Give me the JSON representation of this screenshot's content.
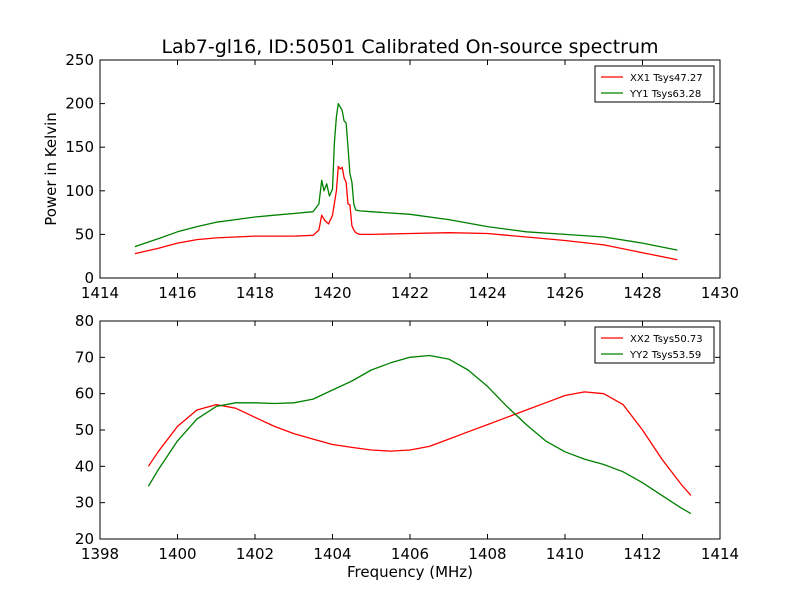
{
  "figure": {
    "title": "Lab7-gl16, ID:50501 Calibrated On-source spectrum"
  },
  "chart_data": [
    {
      "type": "line",
      "title": "Lab7-gl16, ID:50501 Calibrated On-source spectrum",
      "xlabel": "",
      "ylabel": "Power in Kelvin",
      "xlim": [
        1414,
        1430
      ],
      "ylim": [
        0,
        250
      ],
      "xticks": [
        1414,
        1416,
        1418,
        1420,
        1422,
        1424,
        1426,
        1428,
        1430
      ],
      "yticks": [
        0,
        50,
        100,
        150,
        200,
        250
      ],
      "grid": false,
      "legend_position": "top-right",
      "series": [
        {
          "name": "XX1 Tsys47.27",
          "color": "#ff0000",
          "x": [
            1414.9,
            1415.5,
            1416.0,
            1416.5,
            1417.0,
            1417.5,
            1418.0,
            1418.5,
            1419.0,
            1419.5,
            1419.65,
            1419.72,
            1419.8,
            1419.9,
            1420.0,
            1420.1,
            1420.15,
            1420.2,
            1420.25,
            1420.3,
            1420.35,
            1420.4,
            1420.45,
            1420.5,
            1420.55,
            1420.6,
            1420.7,
            1421.0,
            1422.0,
            1423.0,
            1424.0,
            1425.0,
            1426.0,
            1427.0,
            1428.0,
            1428.9
          ],
          "y": [
            28,
            34,
            40,
            44,
            46,
            47,
            48,
            48,
            48,
            49,
            55,
            72,
            66,
            62,
            72,
            100,
            128,
            125,
            127,
            115,
            110,
            85,
            84,
            60,
            55,
            52,
            50,
            50,
            51,
            52,
            51,
            47,
            43,
            38,
            29,
            21
          ]
        },
        {
          "name": "YY1 Tsys63.28",
          "color": "#008000",
          "x": [
            1414.9,
            1415.5,
            1416.0,
            1416.5,
            1417.0,
            1417.5,
            1418.0,
            1418.5,
            1419.0,
            1419.5,
            1419.65,
            1419.72,
            1419.78,
            1419.85,
            1419.92,
            1420.0,
            1420.05,
            1420.1,
            1420.15,
            1420.2,
            1420.25,
            1420.3,
            1420.35,
            1420.4,
            1420.45,
            1420.5,
            1420.55,
            1420.6,
            1420.7,
            1421.0,
            1422.0,
            1423.0,
            1424.0,
            1425.0,
            1426.0,
            1427.0,
            1428.0,
            1428.9
          ],
          "y": [
            36,
            45,
            53,
            59,
            64,
            67,
            70,
            72,
            74,
            76,
            85,
            112,
            100,
            108,
            94,
            102,
            155,
            185,
            200,
            196,
            192,
            180,
            178,
            150,
            120,
            110,
            85,
            78,
            77,
            76,
            73,
            67,
            59,
            53,
            50,
            47,
            40,
            32
          ]
        }
      ]
    },
    {
      "type": "line",
      "title": "",
      "xlabel": "Frequency (MHz)",
      "ylabel": "",
      "xlim": [
        1398,
        1414
      ],
      "ylim": [
        20,
        80
      ],
      "xticks": [
        1398,
        1400,
        1402,
        1404,
        1406,
        1408,
        1410,
        1412,
        1414
      ],
      "yticks": [
        20,
        30,
        40,
        50,
        60,
        70,
        80
      ],
      "grid": false,
      "legend_position": "top-right",
      "series": [
        {
          "name": "XX2 Tsys50.73",
          "color": "#ff0000",
          "x": [
            1399.25,
            1399.5,
            1400.0,
            1400.5,
            1401.0,
            1401.5,
            1402.0,
            1402.5,
            1403.0,
            1403.5,
            1404.0,
            1404.5,
            1405.0,
            1405.5,
            1406.0,
            1406.5,
            1407.0,
            1407.5,
            1408.0,
            1408.5,
            1409.0,
            1409.5,
            1410.0,
            1410.5,
            1411.0,
            1411.5,
            1412.0,
            1412.5,
            1413.0,
            1413.25
          ],
          "y": [
            40,
            44,
            51,
            55.5,
            57,
            56,
            53.5,
            51,
            49,
            47.5,
            46,
            45.2,
            44.5,
            44.2,
            44.5,
            45.5,
            47.5,
            49.5,
            51.5,
            53.5,
            55.5,
            57.5,
            59.5,
            60.5,
            60,
            57,
            50,
            42,
            35,
            32
          ]
        },
        {
          "name": "YY2 Tsys53.59",
          "color": "#008000",
          "x": [
            1399.25,
            1399.5,
            1400.0,
            1400.5,
            1401.0,
            1401.5,
            1402.0,
            1402.5,
            1403.0,
            1403.5,
            1404.0,
            1404.5,
            1405.0,
            1405.5,
            1406.0,
            1406.5,
            1407.0,
            1407.5,
            1408.0,
            1408.5,
            1409.0,
            1409.5,
            1410.0,
            1410.5,
            1411.0,
            1411.5,
            1412.0,
            1412.5,
            1413.0,
            1413.25
          ],
          "y": [
            34.5,
            39,
            47,
            53,
            56.5,
            57.5,
            57.5,
            57.3,
            57.5,
            58.5,
            61,
            63.5,
            66.5,
            68.5,
            70,
            70.5,
            69.5,
            66.5,
            62,
            56.5,
            51.5,
            47,
            44,
            42,
            40.5,
            38.5,
            35.5,
            32,
            28.5,
            27
          ]
        }
      ]
    }
  ]
}
